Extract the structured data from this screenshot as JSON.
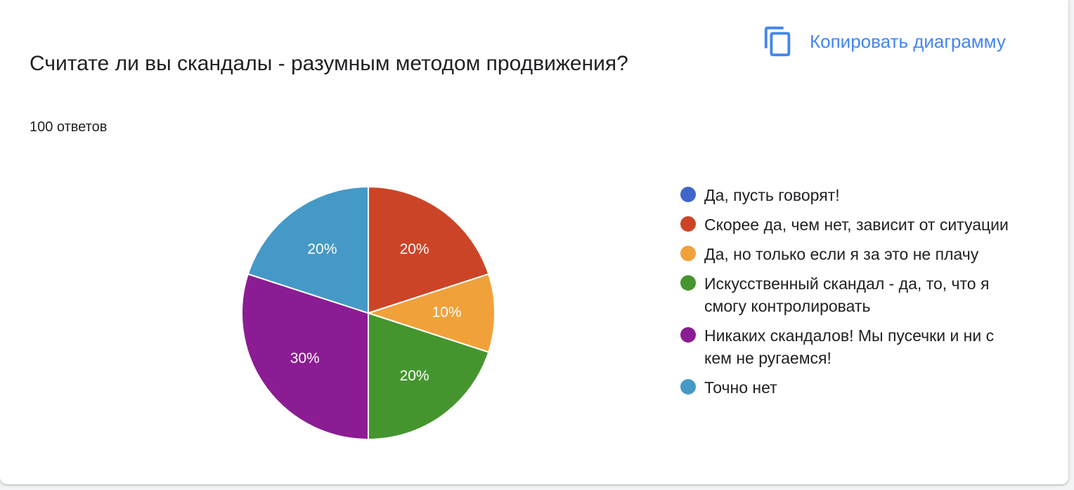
{
  "header": {
    "title": "Считате ли вы скандалы - разумным методом продвижения?",
    "responses": "100 ответов",
    "copy_label": "Копировать диаграмму",
    "copy_icon": "copy-icon"
  },
  "colors": {
    "accent": "#4285f4"
  },
  "chart_data": {
    "type": "pie",
    "title": "",
    "categories": [
      "Да, пусть говорят!",
      "Скорее да, чем нет, зависит от ситуации",
      "Да, но только если я за это не плачу",
      "Искусственный скандал - да, то, что я смогу контролировать",
      "Никаких скандалов! Мы пусечки и ни с кем не ругаемся!",
      "Точно нет"
    ],
    "values": [
      0,
      20,
      10,
      20,
      30,
      20
    ],
    "labels": [
      "",
      "20%",
      "10%",
      "20%",
      "30%",
      "20%"
    ],
    "colors": [
      "#3f66cc",
      "#cc4427",
      "#f0a13a",
      "#45952f",
      "#8b1c93",
      "#4599c6"
    ],
    "legend_position": "right"
  }
}
